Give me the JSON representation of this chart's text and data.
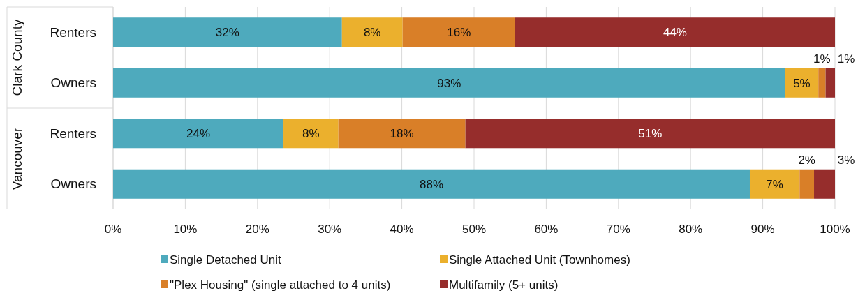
{
  "chart_data": {
    "type": "bar",
    "orientation": "horizontal",
    "stacked": true,
    "categories": [
      "Renters",
      "Owners",
      "Renters",
      "Owners"
    ],
    "series": [
      {
        "name": "Single Detached Unit",
        "color": "#4eaabd",
        "values": [
          31.7,
          93.1,
          23.6,
          88.2
        ],
        "value_labels": [
          "32%",
          "93%",
          "24%",
          "88%"
        ]
      },
      {
        "name": "Single Attached Unit (Townhomes)",
        "color": "#ebb02d",
        "values": [
          8.4,
          4.6,
          7.6,
          6.9
        ],
        "value_labels": [
          "8%",
          "5%",
          "8%",
          "7%"
        ]
      },
      {
        "name": "\"Plex Housing\" (single attached to 4 units)",
        "color": "#d97f28",
        "values": [
          15.6,
          1,
          17.6,
          2
        ],
        "value_labels": [
          "16%",
          "1%",
          "18%",
          "2%"
        ]
      },
      {
        "name": "Multifamily (5+ units)",
        "color": "#962d2c",
        "values": [
          44.3,
          1.3,
          51.2,
          2.9
        ],
        "value_labels": [
          "44%",
          "1%",
          "51%",
          "3%"
        ]
      }
    ],
    "xlim": [
      0,
      100
    ],
    "xticks": [
      {
        "value": 0,
        "label": "0%"
      },
      {
        "value": 10,
        "label": "10%"
      },
      {
        "value": 20,
        "label": "20%"
      },
      {
        "value": 30,
        "label": "30%"
      },
      {
        "value": 40,
        "label": "40%"
      },
      {
        "value": 50,
        "label": "50%"
      },
      {
        "value": 60,
        "label": "60%"
      },
      {
        "value": 70,
        "label": "70%"
      },
      {
        "value": 80,
        "label": "80%"
      },
      {
        "value": 90,
        "label": "90%"
      },
      {
        "value": 100,
        "label": "100%"
      }
    ],
    "annotations": [
      "Clark County",
      "Vancouver"
    ],
    "grid": "x",
    "legend": "bottom"
  }
}
